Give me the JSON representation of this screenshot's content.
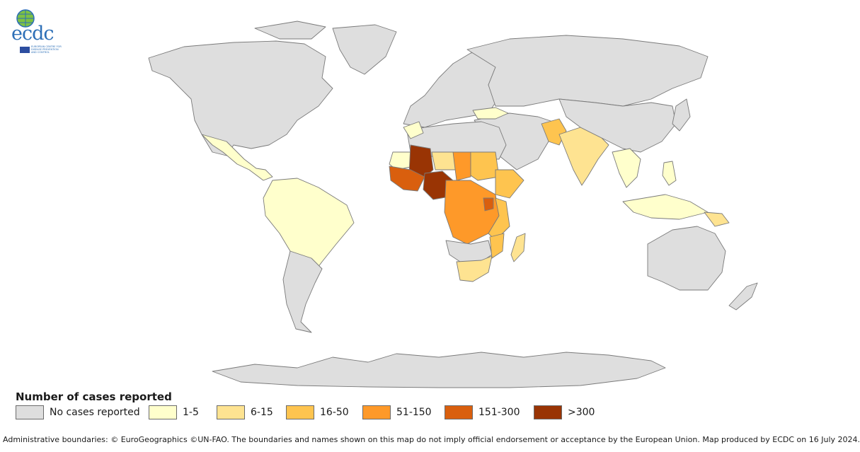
{
  "logo": {
    "name": "ecdc",
    "subtitle": "EUROPEAN CENTRE FOR DISEASE PREVENTION AND CONTROL"
  },
  "legend": {
    "title": "Number of cases reported",
    "items": [
      {
        "label": "No cases reported",
        "color": "#dedede"
      },
      {
        "label": "1-5",
        "color": "#ffffcc"
      },
      {
        "label": "6-15",
        "color": "#fee391"
      },
      {
        "label": "16-50",
        "color": "#fec44f"
      },
      {
        "label": "51-150",
        "color": "#fe9929"
      },
      {
        "label": "151-300",
        "color": "#d95f0e"
      },
      {
        "label": ">300",
        "color": "#993404"
      }
    ]
  },
  "disclaimer": "Administrative boundaries: © EuroGeographics ©UN-FAO. The boundaries and names shown on this map do not imply official endorsement or acceptance by the European Union. Map produced by ECDC on 16 July 2024."
}
